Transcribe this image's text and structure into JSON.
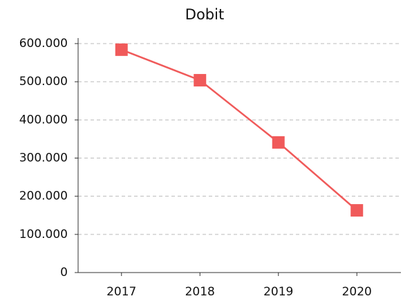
{
  "chart_data": {
    "type": "line",
    "title": "Dobit",
    "categories": [
      "2017",
      "2018",
      "2019",
      "2020"
    ],
    "values": [
      584000,
      504000,
      341000,
      163000
    ],
    "color": "#f05a5a",
    "ylim": [
      0,
      600000
    ],
    "yticks": [
      0,
      {
        "value": 100000,
        "label": "100.000"
      },
      {
        "value": 200000,
        "label": "200.000"
      },
      {
        "value": 300000,
        "label": "300.000"
      },
      {
        "value": 400000,
        "label": "400.000"
      },
      {
        "value": 500000,
        "label": "500.000"
      },
      {
        "value": 600000,
        "label": "600.000"
      }
    ],
    "grid": true
  }
}
